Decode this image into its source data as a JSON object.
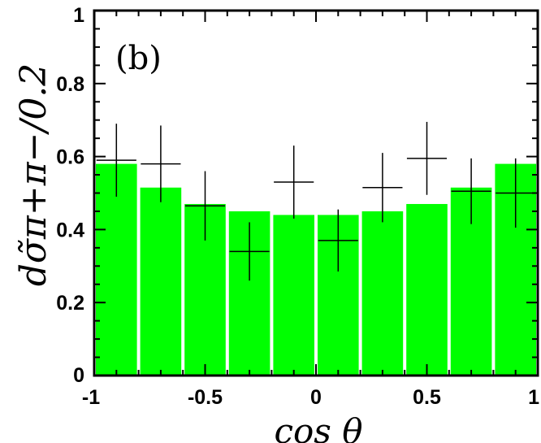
{
  "chart_data": {
    "type": "bar",
    "panel_label": "(b)",
    "xlabel": "cos θ",
    "ylabel": "dσ̃π+π−/0.2",
    "xlim": [
      -1,
      1
    ],
    "ylim": [
      0,
      1
    ],
    "x_ticks": [
      "-1",
      "-0.5",
      "0",
      "0.5",
      "1"
    ],
    "y_ticks": [
      "0",
      "0.2",
      "0.4",
      "0.6",
      "0.8",
      "1"
    ],
    "bar_color": "#00ff00",
    "bins": [
      [
        -1.0,
        -0.8
      ],
      [
        -0.8,
        -0.6
      ],
      [
        -0.6,
        -0.4
      ],
      [
        -0.4,
        -0.2
      ],
      [
        -0.2,
        0.0
      ],
      [
        0.0,
        0.2
      ],
      [
        0.2,
        0.4
      ],
      [
        0.4,
        0.6
      ],
      [
        0.6,
        0.8
      ],
      [
        0.8,
        1.0
      ]
    ],
    "series": [
      {
        "values": [
          0.58,
          0.515,
          0.47,
          0.45,
          0.44,
          0.44,
          0.45,
          0.47,
          0.515,
          0.58
        ]
      },
      {
        "x": [
          -0.9,
          -0.7,
          -0.5,
          -0.3,
          -0.1,
          0.1,
          0.3,
          0.5,
          0.7,
          0.9
        ],
        "values": [
          0.59,
          0.58,
          0.465,
          0.34,
          0.53,
          0.37,
          0.515,
          0.595,
          0.505,
          0.5
        ],
        "yerr": [
          0.1,
          0.105,
          0.095,
          0.08,
          0.1,
          0.085,
          0.095,
          0.1,
          0.09,
          0.095
        ]
      }
    ]
  }
}
